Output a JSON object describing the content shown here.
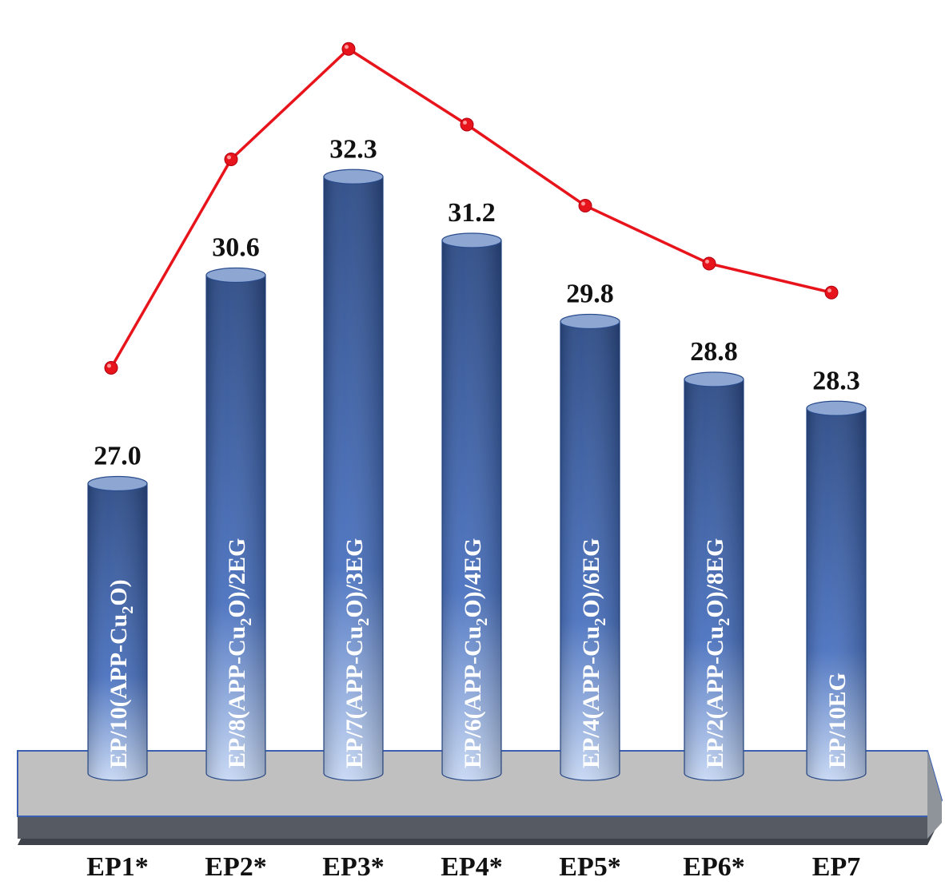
{
  "chart_data": {
    "type": "bar",
    "categories": [
      "EP1*",
      "EP2*",
      "EP3*",
      "EP4*",
      "EP5*",
      "EP6*",
      "EP7"
    ],
    "values": [
      27.0,
      30.6,
      32.3,
      31.2,
      29.8,
      28.8,
      28.3
    ],
    "value_labels": [
      "27.0",
      "30.6",
      "32.3",
      "31.2",
      "29.8",
      "28.8",
      "28.3"
    ],
    "bar_texts": [
      {
        "main": "EP/10(APP-Cu",
        "sub": "2",
        "tail": "O)"
      },
      {
        "main": "EP/8(APP-Cu",
        "sub": "2",
        "tail": "O)/2EG"
      },
      {
        "main": "EP/7(APP-Cu",
        "sub": "2",
        "tail": "O)/3EG"
      },
      {
        "main": "EP/6(APP-Cu",
        "sub": "2",
        "tail": "O)/4EG"
      },
      {
        "main": "EP/4(APP-Cu",
        "sub": "2",
        "tail": "O)/6EG"
      },
      {
        "main": "EP/2(APP-Cu",
        "sub": "2",
        "tail": "O)/8EG"
      },
      {
        "main": "EP/10EG",
        "sub": "",
        "tail": ""
      }
    ],
    "ylim": [
      22,
      34
    ],
    "line_series": {
      "color": "#e8141c"
    },
    "title": "",
    "xlabel": "",
    "ylabel": "",
    "grid": false,
    "colors": {
      "bar_top": "#2b4a86",
      "bar_bottom": "#c7d8f4",
      "bar_cap": "#8da7d2",
      "platform_top": "#c0c0c0",
      "platform_front": "#555a63",
      "platform_edge": "#3a5fb0"
    }
  }
}
